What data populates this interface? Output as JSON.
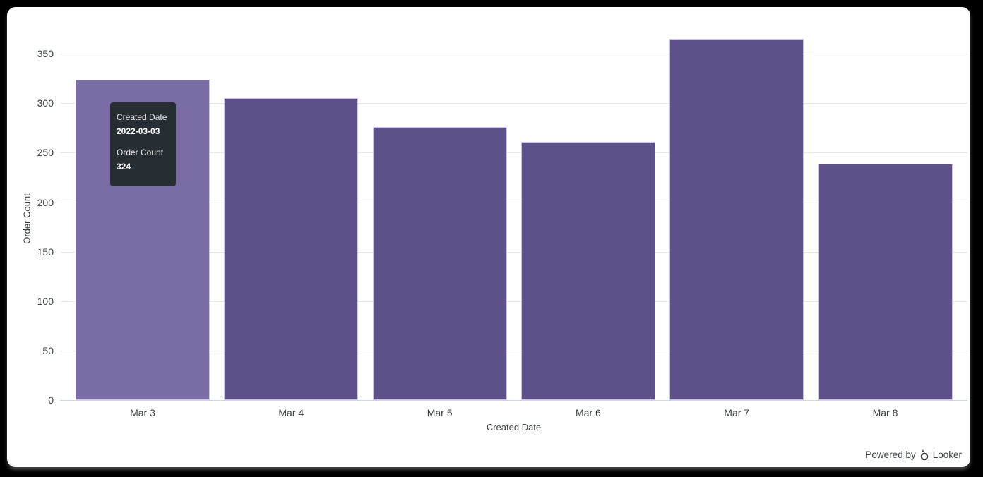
{
  "chart_data": {
    "type": "bar",
    "title": "",
    "categories": [
      "Mar 3",
      "Mar 4",
      "Mar 5",
      "Mar 6",
      "Mar 7",
      "Mar 8"
    ],
    "values": [
      324,
      305,
      276,
      261,
      365,
      239
    ],
    "xlabel": "Created Date",
    "ylabel": "Order Count",
    "ylim": [
      0,
      383
    ],
    "yticks": [
      0,
      50,
      100,
      150,
      200,
      250,
      300,
      350
    ],
    "grid": true,
    "legend_position": "none",
    "hovered_index": 0
  },
  "tooltip": {
    "dimension_label": "Created Date",
    "dimension_value": "2022-03-03",
    "measure_label": "Order Count",
    "measure_value": "324"
  },
  "footer": {
    "powered_by_label": "Powered by",
    "brand_label": "Looker"
  },
  "colors": {
    "bar": "#5E5189",
    "bar_hover": "#7A6CA4",
    "bar_border": "#CDC5E0",
    "gridline": "#E8E8E8",
    "axis_line": "#CCD6EB",
    "axis_text": "#3C4043",
    "tooltip_bg": "#262D33",
    "tooltip_text": "#FFFFFF",
    "frame_bg": "#000000",
    "card_bg": "#FFFFFF"
  }
}
